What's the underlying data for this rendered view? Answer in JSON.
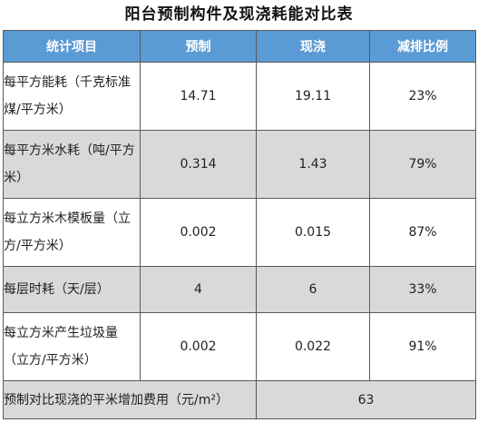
{
  "title": "阳台预制构件及现浇耗能对比表",
  "table": {
    "headers": [
      "统计项目",
      "预制",
      "现浇",
      "减排比例"
    ],
    "rows": [
      {
        "item": "每平方能耗（千克标准煤/平方米）",
        "prefab": "14.71",
        "cast": "19.11",
        "ratio": "23%"
      },
      {
        "item": "每平方米水耗（吨/平方米）",
        "prefab": "0.314",
        "cast": "1.43",
        "ratio": "79%"
      },
      {
        "item": "每立方米木模板量（立方/平方米）",
        "prefab": "0.002",
        "cast": "0.015",
        "ratio": "87%"
      },
      {
        "item": "每层时耗（天/层）",
        "prefab": "4",
        "cast": "6",
        "ratio": "33%"
      },
      {
        "item": "每立方米产生垃圾量（立方/平方米）",
        "prefab": "0.002",
        "cast": "0.022",
        "ratio": "91%"
      }
    ],
    "footer": {
      "label": "预制对比现浇的平米增加费用（元/m²）",
      "value": "63"
    }
  }
}
